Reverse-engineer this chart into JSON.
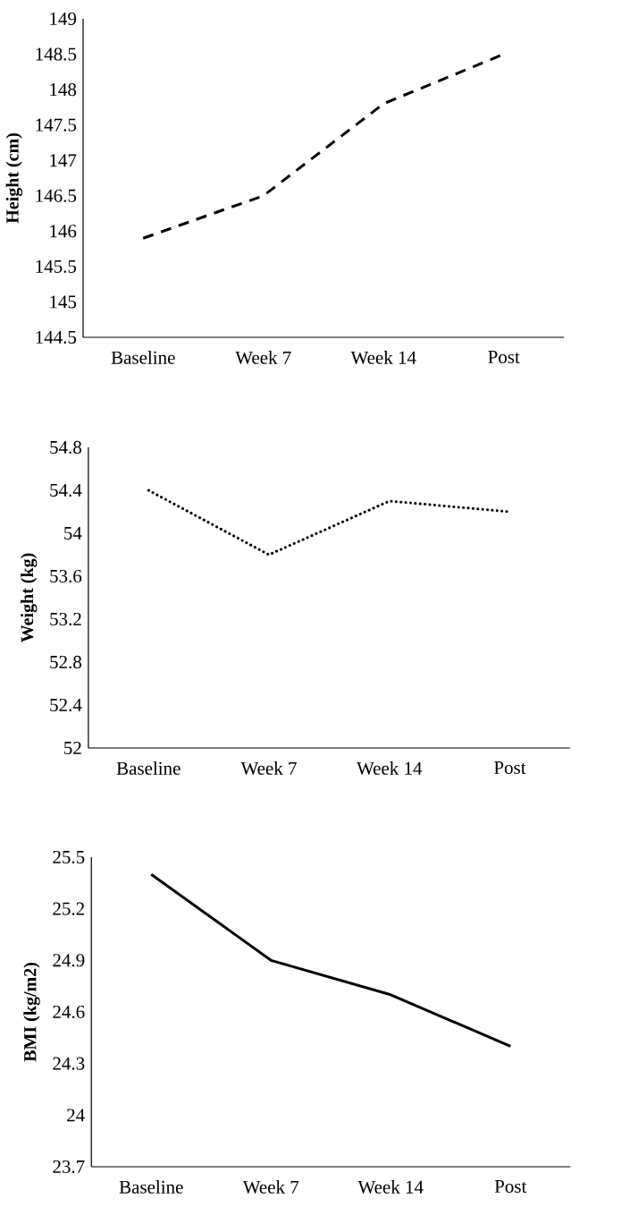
{
  "chart_data": [
    {
      "type": "line",
      "categories": [
        "Baseline",
        "Week 7",
        "Week 14",
        "Post"
      ],
      "ylabel": "Height (cm)",
      "line_style": "dashed",
      "ylim": [
        144.5,
        149
      ],
      "yticks": [
        144.5,
        145,
        145.5,
        146,
        146.5,
        147,
        147.5,
        148,
        148.5,
        149
      ],
      "series": [
        {
          "color": "#000000",
          "values": [
            145.9,
            146.5,
            147.8,
            148.5
          ]
        }
      ]
    },
    {
      "type": "line",
      "categories": [
        "Baseline",
        "Week 7",
        "Week 14",
        "Post"
      ],
      "ylabel": "Weight (kg)",
      "line_style": "dotted",
      "ylim": [
        52,
        54.8
      ],
      "yticks": [
        52,
        52.4,
        52.8,
        53.2,
        53.6,
        54,
        54.4,
        54.8
      ],
      "series": [
        {
          "color": "#000000",
          "values": [
            54.4,
            53.8,
            54.3,
            54.2
          ]
        }
      ]
    },
    {
      "type": "line",
      "categories": [
        "Baseline",
        "Week 7",
        "Week 14",
        "Post"
      ],
      "ylabel": "BMI (kg/m2)",
      "line_style": "solid",
      "ylim": [
        23.7,
        25.5
      ],
      "yticks": [
        23.7,
        24,
        24.3,
        24.6,
        24.9,
        25.2,
        25.5
      ],
      "series": [
        {
          "color": "#000000",
          "values": [
            25.4,
            24.9,
            24.7,
            24.4
          ]
        }
      ]
    }
  ]
}
